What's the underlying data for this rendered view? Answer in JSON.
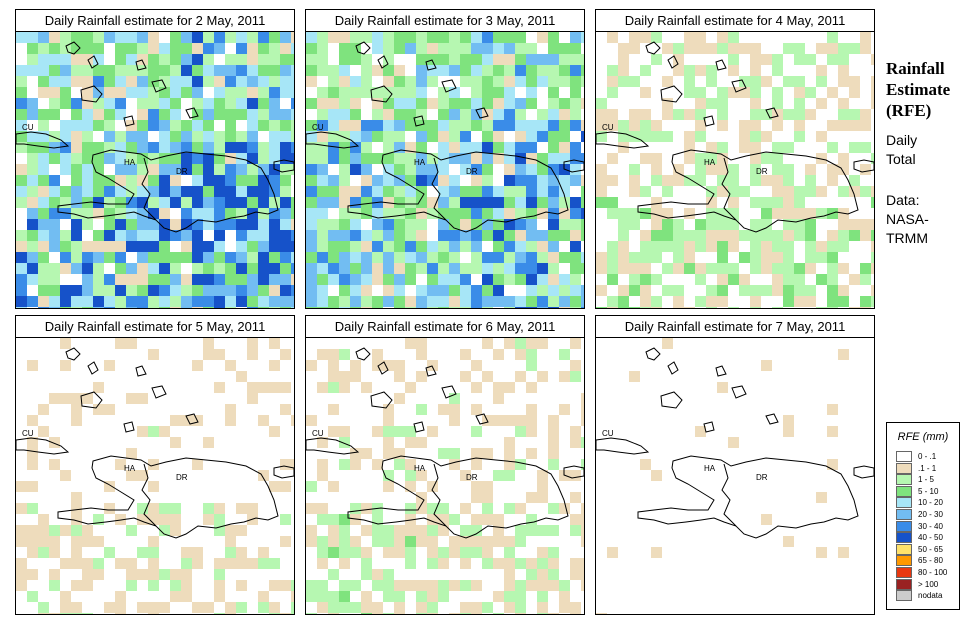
{
  "panels": [
    {
      "title": "Daily Rainfall estimate for  2 May, 2011",
      "rain_level": 1.0,
      "hot_zone": "south-east and central"
    },
    {
      "title": "Daily Rainfall estimate for  3 May, 2011",
      "rain_level": 0.85,
      "hot_zone": "north and south-east"
    },
    {
      "title": "Daily Rainfall estimate for  4 May, 2011",
      "rain_level": 0.45,
      "hot_zone": "south"
    },
    {
      "title": "Daily Rainfall estimate for  5 May, 2011",
      "rain_level": 0.3,
      "hot_zone": "south"
    },
    {
      "title": "Daily Rainfall estimate for  6 May, 2011",
      "rain_level": 0.35,
      "hot_zone": "south-west and south"
    },
    {
      "title": "Daily Rainfall estimate for  7 May, 2011",
      "rain_level": 0.08,
      "hot_zone": "none"
    }
  ],
  "map_labels": {
    "cu": "CU",
    "ha": "HA",
    "dr": "DR"
  },
  "side": {
    "title_line1": "Rainfall",
    "title_line2": "Estimate",
    "title_line3": "(RFE)",
    "daily": "Daily",
    "total": "Total",
    "data_label": "Data:",
    "source_line1": "NASA-",
    "source_line2": "TRMM"
  },
  "legend": {
    "title": "RFE (mm)",
    "items": [
      {
        "label": "0 - .1",
        "color": "#ffffff"
      },
      {
        "label": ".1 - 1",
        "color": "#eedcbc"
      },
      {
        "label": "1 - 5",
        "color": "#b6f7b1"
      },
      {
        "label": "5 - 10",
        "color": "#7fe37e"
      },
      {
        "label": "10 - 20",
        "color": "#a7e6f7"
      },
      {
        "label": "20 - 30",
        "color": "#72bdf2"
      },
      {
        "label": "30 - 40",
        "color": "#3a8ce8"
      },
      {
        "label": "40 - 50",
        "color": "#1652c9"
      },
      {
        "label": "50 - 65",
        "color": "#ffe26b"
      },
      {
        "label": "65 - 80",
        "color": "#ff9900"
      },
      {
        "label": "80 - 100",
        "color": "#e83810"
      },
      {
        "label": "> 100",
        "color": "#992222"
      },
      {
        "label": "nodata",
        "color": "#cccccc"
      }
    ]
  }
}
